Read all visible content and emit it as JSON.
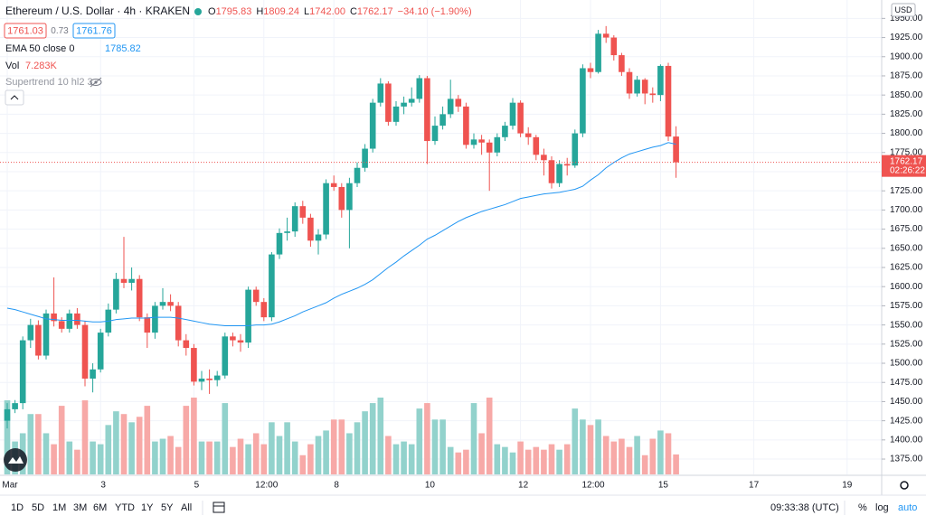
{
  "header": {
    "symbol": "Ethereum / U.S. Dollar · 4h · KRAKEN",
    "ohlc_letters": [
      "O",
      "H",
      "L",
      "C"
    ],
    "ohlc_values": [
      "1795.83",
      "1809.24",
      "1742.00",
      "1762.17"
    ],
    "change": "−34.10 (−1.90%)",
    "bid": "1761.03",
    "spread": "0.73",
    "ask": "1761.76",
    "ema_label": "EMA 50 close 0",
    "ema_value": "1785.82",
    "vol_label": "Vol",
    "vol_value": "7.283K",
    "supertrend_label": "Supertrend 10 hl2 3"
  },
  "toolbar": {
    "ranges": [
      "1D",
      "5D",
      "1M",
      "3M",
      "6M",
      "YTD",
      "1Y",
      "5Y",
      "All"
    ],
    "clock": "09:33:38 (UTC)",
    "options": [
      "%",
      "log",
      "auto"
    ]
  },
  "chart_data": {
    "type": "candlestick",
    "currency": "USD",
    "last_price_label": "1762.17",
    "countdown": "02:26:22",
    "up_color": "#26a69a",
    "down_color": "#ef5350",
    "vol_up_color": "#92d2cc",
    "vol_down_color": "#f7a9a7",
    "ema_color": "#2196f3",
    "ylim": [
      1355,
      1974
    ],
    "yticks": [
      {
        "value": 1375,
        "label": "1375.00"
      },
      {
        "value": 1400,
        "label": "1400.00"
      },
      {
        "value": 1425,
        "label": "1425.00"
      },
      {
        "value": 1450,
        "label": "1450.00"
      },
      {
        "value": 1475,
        "label": "1475.00"
      },
      {
        "value": 1500,
        "label": "1500.00"
      },
      {
        "value": 1525,
        "label": "1525.00"
      },
      {
        "value": 1550,
        "label": "1550.00"
      },
      {
        "value": 1575,
        "label": "1575.00"
      },
      {
        "value": 1600,
        "label": "1600.00"
      },
      {
        "value": 1625,
        "label": "1625.00"
      },
      {
        "value": 1650,
        "label": "1650.00"
      },
      {
        "value": 1675,
        "label": "1675.00"
      },
      {
        "value": 1700,
        "label": "1700.00"
      },
      {
        "value": 1725,
        "label": "1725.00"
      },
      {
        "value": 1750,
        "label": "1750.00"
      },
      {
        "value": 1775,
        "label": "1775.00"
      },
      {
        "value": 1800,
        "label": "1800.00"
      },
      {
        "value": 1825,
        "label": "1825.00"
      },
      {
        "value": 1850,
        "label": "1850.00"
      },
      {
        "value": 1875,
        "label": "1875.00"
      },
      {
        "value": 1900,
        "label": "1900.00"
      },
      {
        "value": 1925,
        "label": "1925.00"
      },
      {
        "value": 1950,
        "label": "1950.00"
      }
    ],
    "categories": [
      "Mar",
      null,
      null,
      null,
      null,
      null,
      null,
      null,
      null,
      null,
      null,
      null,
      "3",
      null,
      null,
      null,
      null,
      null,
      null,
      null,
      null,
      null,
      null,
      null,
      "5",
      null,
      null,
      null,
      null,
      null,
      null,
      null,
      null,
      "12:00",
      null,
      null,
      null,
      null,
      null,
      null,
      null,
      null,
      "8",
      null,
      null,
      null,
      null,
      null,
      null,
      null,
      null,
      null,
      null,
      null,
      "10",
      null,
      null,
      null,
      null,
      null,
      null,
      null,
      null,
      null,
      null,
      null,
      "12",
      null,
      null,
      null,
      null,
      null,
      null,
      null,
      null,
      "12:00",
      null,
      null,
      null,
      null,
      null,
      null,
      null,
      null,
      "15",
      null,
      null
    ],
    "xticks_ahead": [
      "17",
      "19"
    ],
    "open": [
      1425,
      1440,
      1448,
      1530,
      1550,
      1510,
      1565,
      1555,
      1545,
      1565,
      1550,
      1480,
      1492,
      1540,
      1570,
      1610,
      1605,
      1610,
      1560,
      1540,
      1575,
      1580,
      1575,
      1530,
      1520,
      1476,
      1480,
      1478,
      1484,
      1535,
      1530,
      1527,
      1596,
      1580,
      1560,
      1642,
      1670,
      1672,
      1705,
      1690,
      1660,
      1668,
      1735,
      1730,
      1700,
      1735,
      1755,
      1780,
      1840,
      1865,
      1815,
      1835,
      1840,
      1845,
      1872,
      1790,
      1810,
      1825,
      1845,
      1835,
      1785,
      1792,
      1788,
      1775,
      1795,
      1810,
      1840,
      1800,
      1795,
      1772,
      1765,
      1735,
      1760,
      1758,
      1800,
      1885,
      1880,
      1930,
      1925,
      1902,
      1880,
      1852,
      1870,
      1852,
      1850,
      1888,
      1795.83
    ],
    "high": [
      1448,
      1452,
      1535,
      1558,
      1556,
      1570,
      1612,
      1560,
      1570,
      1572,
      1555,
      1500,
      1545,
      1578,
      1618,
      1665,
      1625,
      1615,
      1565,
      1580,
      1598,
      1590,
      1580,
      1538,
      1525,
      1490,
      1492,
      1490,
      1540,
      1540,
      1538,
      1600,
      1600,
      1585,
      1645,
      1676,
      1690,
      1710,
      1712,
      1695,
      1675,
      1740,
      1745,
      1735,
      1742,
      1762,
      1786,
      1845,
      1872,
      1868,
      1842,
      1848,
      1860,
      1876,
      1875,
      1822,
      1835,
      1870,
      1850,
      1840,
      1800,
      1798,
      1792,
      1800,
      1815,
      1846,
      1843,
      1808,
      1798,
      1780,
      1770,
      1765,
      1768,
      1805,
      1890,
      1892,
      1935,
      1940,
      1928,
      1905,
      1885,
      1875,
      1872,
      1860,
      1890,
      1892,
      1809.24
    ],
    "low": [
      1415,
      1435,
      1440,
      1520,
      1505,
      1505,
      1548,
      1540,
      1540,
      1545,
      1470,
      1462,
      1488,
      1535,
      1565,
      1598,
      1595,
      1555,
      1520,
      1532,
      1570,
      1568,
      1522,
      1510,
      1471,
      1465,
      1460,
      1470,
      1480,
      1522,
      1515,
      1520,
      1575,
      1555,
      1555,
      1636,
      1660,
      1665,
      1682,
      1652,
      1642,
      1662,
      1725,
      1690,
      1650,
      1730,
      1750,
      1775,
      1835,
      1810,
      1810,
      1825,
      1835,
      1840,
      1760,
      1785,
      1805,
      1820,
      1828,
      1780,
      1780,
      1772,
      1725,
      1770,
      1790,
      1805,
      1795,
      1785,
      1765,
      1745,
      1728,
      1730,
      1745,
      1755,
      1795,
      1872,
      1878,
      1918,
      1895,
      1875,
      1845,
      1848,
      1838,
      1840,
      1842,
      1790,
      1742
    ],
    "close": [
      1440,
      1448,
      1530,
      1550,
      1510,
      1565,
      1555,
      1545,
      1565,
      1550,
      1480,
      1492,
      1540,
      1570,
      1610,
      1605,
      1610,
      1560,
      1540,
      1575,
      1580,
      1575,
      1530,
      1520,
      1476,
      1480,
      1478,
      1484,
      1535,
      1530,
      1527,
      1596,
      1580,
      1560,
      1642,
      1670,
      1672,
      1705,
      1690,
      1660,
      1668,
      1735,
      1730,
      1700,
      1735,
      1755,
      1780,
      1840,
      1865,
      1815,
      1835,
      1840,
      1845,
      1872,
      1790,
      1810,
      1825,
      1845,
      1835,
      1785,
      1792,
      1788,
      1775,
      1795,
      1810,
      1840,
      1800,
      1795,
      1772,
      1765,
      1735,
      1760,
      1758,
      1800,
      1885,
      1880,
      1930,
      1925,
      1902,
      1880,
      1852,
      1870,
      1852,
      1850,
      1888,
      1795.83,
      1762.17
    ],
    "volume": [
      27,
      12,
      15,
      22,
      22,
      15,
      11,
      25,
      12,
      9,
      27,
      12,
      11,
      18,
      23,
      22,
      19,
      21,
      25,
      12,
      13,
      14,
      10,
      25,
      28,
      12,
      12,
      12,
      26,
      10,
      13,
      11,
      15,
      11,
      19,
      14,
      19,
      12,
      7,
      11,
      14,
      16,
      20,
      20,
      15,
      19,
      23,
      26,
      28,
      14,
      11,
      12,
      11,
      24,
      26,
      20,
      20,
      10,
      8,
      9,
      26,
      15,
      28,
      11,
      10,
      8,
      12,
      9,
      10,
      9,
      11,
      9,
      11,
      24,
      20,
      18,
      20,
      14,
      12,
      13,
      10,
      14,
      7,
      13,
      16,
      15,
      7.283
    ],
    "ema": [
      1572,
      1570,
      1567,
      1564,
      1561,
      1558,
      1557,
      1556,
      1556,
      1556,
      1555,
      1554,
      1554,
      1555,
      1557,
      1558,
      1559,
      1559,
      1559,
      1560,
      1560,
      1560,
      1559,
      1557,
      1555,
      1553,
      1551,
      1550,
      1549,
      1549,
      1549,
      1549,
      1550,
      1550,
      1551,
      1554,
      1558,
      1562,
      1567,
      1571,
      1575,
      1579,
      1585,
      1590,
      1594,
      1598,
      1603,
      1609,
      1617,
      1625,
      1632,
      1640,
      1647,
      1654,
      1662,
      1667,
      1673,
      1679,
      1685,
      1690,
      1694,
      1698,
      1701,
      1704,
      1707,
      1711,
      1715,
      1717,
      1719,
      1721,
      1722,
      1723,
      1725,
      1727,
      1731,
      1739,
      1746,
      1755,
      1762,
      1768,
      1773,
      1776,
      1779,
      1782,
      1784,
      1788,
      1785.82
    ]
  }
}
